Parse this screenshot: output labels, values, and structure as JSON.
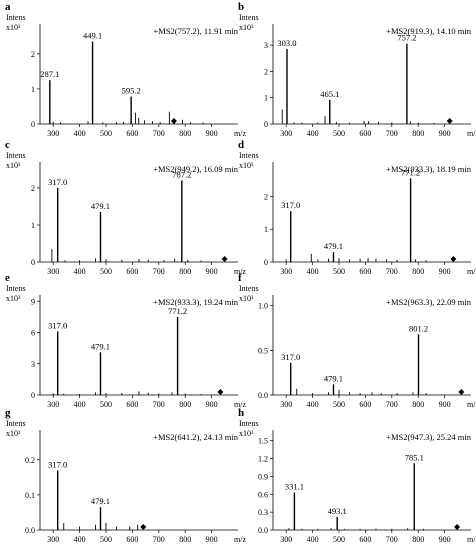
{
  "figure": {
    "y_axis_label": "Intens",
    "x_axis_unit": "m/z"
  },
  "chart_data": [
    {
      "panel": "a",
      "type": "bar",
      "title": "+MS2(757.2), 11.91 min",
      "y_multiplier": "x10³",
      "xlim": [
        250,
        1000
      ],
      "ylim": [
        0,
        2.85
      ],
      "xticks": [
        300,
        400,
        500,
        600,
        700,
        800,
        900
      ],
      "yticks": [
        0,
        1,
        2
      ],
      "peaks": [
        {
          "mz": 287.1,
          "intensity": 1.25,
          "label": "287.1"
        },
        {
          "mz": 449.1,
          "intensity": 2.35,
          "label": "449.1"
        },
        {
          "mz": 595.2,
          "intensity": 0.78,
          "label": "595.2"
        },
        {
          "mz": 300,
          "intensity": 0.06
        },
        {
          "mz": 328,
          "intensity": 0.05
        },
        {
          "mz": 432,
          "intensity": 0.08
        },
        {
          "mz": 488,
          "intensity": 0.05
        },
        {
          "mz": 540,
          "intensity": 0.05
        },
        {
          "mz": 566,
          "intensity": 0.06
        },
        {
          "mz": 612,
          "intensity": 0.32
        },
        {
          "mz": 624,
          "intensity": 0.18
        },
        {
          "mz": 646,
          "intensity": 0.1
        },
        {
          "mz": 676,
          "intensity": 0.08
        },
        {
          "mz": 705,
          "intensity": 0.06
        },
        {
          "mz": 740,
          "intensity": 0.35
        },
        {
          "mz": 760,
          "intensity": 0.1
        },
        {
          "mz": 790,
          "intensity": 0.12
        },
        {
          "mz": 820,
          "intensity": 0.05
        },
        {
          "mz": 868,
          "intensity": 0.04
        }
      ],
      "precursor_mz": 757.2
    },
    {
      "panel": "b",
      "type": "bar",
      "title": "+MS2(919.3), 14.10 min",
      "y_multiplier": "x10³",
      "xlim": [
        250,
        1000
      ],
      "ylim": [
        0,
        3.8
      ],
      "xticks": [
        300,
        400,
        500,
        600,
        700,
        800,
        900
      ],
      "yticks": [
        0,
        1,
        2,
        3
      ],
      "peaks": [
        {
          "mz": 303.0,
          "intensity": 2.85,
          "label": "303.0"
        },
        {
          "mz": 465.1,
          "intensity": 0.92,
          "label": "465.1"
        },
        {
          "mz": 757.2,
          "intensity": 3.05,
          "label": "757.2"
        },
        {
          "mz": 285,
          "intensity": 0.55
        },
        {
          "mz": 330,
          "intensity": 0.06
        },
        {
          "mz": 360,
          "intensity": 0.05
        },
        {
          "mz": 420,
          "intensity": 0.06
        },
        {
          "mz": 447,
          "intensity": 0.3
        },
        {
          "mz": 490,
          "intensity": 0.08
        },
        {
          "mz": 540,
          "intensity": 0.05
        },
        {
          "mz": 595,
          "intensity": 0.12
        },
        {
          "mz": 612,
          "intensity": 0.1
        },
        {
          "mz": 650,
          "intensity": 0.08
        },
        {
          "mz": 700,
          "intensity": 0.06
        },
        {
          "mz": 770,
          "intensity": 0.1
        },
        {
          "mz": 800,
          "intensity": 0.05
        },
        {
          "mz": 860,
          "intensity": 0.04
        }
      ],
      "precursor_mz": 919.3
    },
    {
      "panel": "c",
      "type": "bar",
      "title": "+MS2(949.2), 16.09 min",
      "y_multiplier": "x10³",
      "xlim": [
        250,
        1000
      ],
      "ylim": [
        0,
        2.7
      ],
      "xticks": [
        300,
        400,
        500,
        600,
        700,
        800,
        900
      ],
      "yticks": [
        0,
        1,
        2
      ],
      "peaks": [
        {
          "mz": 317.0,
          "intensity": 2.0,
          "label": "317.0"
        },
        {
          "mz": 479.1,
          "intensity": 1.35,
          "label": "479.1"
        },
        {
          "mz": 787.2,
          "intensity": 2.2,
          "label": "787.2"
        },
        {
          "mz": 295,
          "intensity": 0.35
        },
        {
          "mz": 345,
          "intensity": 0.05
        },
        {
          "mz": 400,
          "intensity": 0.05
        },
        {
          "mz": 460,
          "intensity": 0.1
        },
        {
          "mz": 500,
          "intensity": 0.08
        },
        {
          "mz": 560,
          "intensity": 0.06
        },
        {
          "mz": 625,
          "intensity": 0.08
        },
        {
          "mz": 660,
          "intensity": 0.06
        },
        {
          "mz": 720,
          "intensity": 0.05
        },
        {
          "mz": 760,
          "intensity": 0.08
        },
        {
          "mz": 810,
          "intensity": 0.06
        },
        {
          "mz": 860,
          "intensity": 0.04
        }
      ],
      "precursor_mz": 949.2
    },
    {
      "panel": "d",
      "type": "bar",
      "title": "+MS2(933.3), 18.19 min",
      "y_multiplier": "x10³",
      "xlim": [
        250,
        1000
      ],
      "ylim": [
        0,
        3.05
      ],
      "xticks": [
        300,
        400,
        500,
        600,
        700,
        800,
        900
      ],
      "yticks": [
        0,
        1,
        2
      ],
      "peaks": [
        {
          "mz": 317.0,
          "intensity": 1.55,
          "label": "317.0"
        },
        {
          "mz": 479.1,
          "intensity": 0.3,
          "label": "479.1"
        },
        {
          "mz": 771.2,
          "intensity": 2.55,
          "label": "771.2"
        },
        {
          "mz": 300,
          "intensity": 0.08
        },
        {
          "mz": 395,
          "intensity": 0.25
        },
        {
          "mz": 420,
          "intensity": 0.08
        },
        {
          "mz": 460,
          "intensity": 0.1
        },
        {
          "mz": 500,
          "intensity": 0.12
        },
        {
          "mz": 540,
          "intensity": 0.08
        },
        {
          "mz": 580,
          "intensity": 0.1
        },
        {
          "mz": 610,
          "intensity": 0.12
        },
        {
          "mz": 640,
          "intensity": 0.1
        },
        {
          "mz": 680,
          "intensity": 0.08
        },
        {
          "mz": 720,
          "intensity": 0.06
        },
        {
          "mz": 790,
          "intensity": 0.08
        },
        {
          "mz": 830,
          "intensity": 0.05
        }
      ],
      "precursor_mz": 933.3
    },
    {
      "panel": "e",
      "type": "bar",
      "title": "+MS2(933.3), 19.24 min",
      "y_multiplier": "x10³",
      "xlim": [
        250,
        1000
      ],
      "ylim": [
        0,
        9.6
      ],
      "xticks": [
        300,
        400,
        500,
        600,
        700,
        800,
        900
      ],
      "yticks": [
        0,
        3,
        6,
        9
      ],
      "peaks": [
        {
          "mz": 317.0,
          "intensity": 6.1,
          "label": "317.0"
        },
        {
          "mz": 479.1,
          "intensity": 4.1,
          "label": "479.1"
        },
        {
          "mz": 771.2,
          "intensity": 7.5,
          "label": "771.2"
        },
        {
          "mz": 300,
          "intensity": 0.15
        },
        {
          "mz": 340,
          "intensity": 0.12
        },
        {
          "mz": 400,
          "intensity": 0.1
        },
        {
          "mz": 460,
          "intensity": 0.25
        },
        {
          "mz": 500,
          "intensity": 0.2
        },
        {
          "mz": 560,
          "intensity": 0.18
        },
        {
          "mz": 625,
          "intensity": 0.35
        },
        {
          "mz": 660,
          "intensity": 0.2
        },
        {
          "mz": 700,
          "intensity": 0.15
        },
        {
          "mz": 750,
          "intensity": 0.25
        },
        {
          "mz": 800,
          "intensity": 0.15
        },
        {
          "mz": 860,
          "intensity": 0.1
        }
      ],
      "precursor_mz": 933.3
    },
    {
      "panel": "f",
      "type": "bar",
      "title": "+MS2(963.3), 22.09 min",
      "y_multiplier": "x10³",
      "xlim": [
        250,
        1000
      ],
      "ylim": [
        0,
        1.12
      ],
      "xticks": [
        300,
        400,
        500,
        600,
        700,
        800,
        900
      ],
      "yticks": [
        0.0,
        0.5,
        1.0
      ],
      "peaks": [
        {
          "mz": 317.0,
          "intensity": 0.36,
          "label": "317.0"
        },
        {
          "mz": 479.1,
          "intensity": 0.12,
          "label": "479.1"
        },
        {
          "mz": 801.2,
          "intensity": 0.68,
          "label": "801.2"
        },
        {
          "mz": 340,
          "intensity": 0.07
        },
        {
          "mz": 400,
          "intensity": 0.02
        },
        {
          "mz": 460,
          "intensity": 0.03
        },
        {
          "mz": 500,
          "intensity": 0.06
        },
        {
          "mz": 540,
          "intensity": 0.03
        },
        {
          "mz": 580,
          "intensity": 0.02
        },
        {
          "mz": 625,
          "intensity": 0.03
        },
        {
          "mz": 660,
          "intensity": 0.02
        },
        {
          "mz": 720,
          "intensity": 0.02
        },
        {
          "mz": 780,
          "intensity": 0.03
        },
        {
          "mz": 830,
          "intensity": 0.02
        }
      ],
      "precursor_mz": 963.3
    },
    {
      "panel": "g",
      "type": "bar",
      "title": "+MS2(641.2), 24.13 min",
      "y_multiplier": "x10³",
      "xlim": [
        250,
        1000
      ],
      "ylim": [
        0,
        0.285
      ],
      "xticks": [
        300,
        400,
        500,
        600,
        700,
        800,
        900
      ],
      "yticks": [
        0.0,
        0.1,
        0.2
      ],
      "peaks": [
        {
          "mz": 317.0,
          "intensity": 0.17,
          "label": "317.0"
        },
        {
          "mz": 479.1,
          "intensity": 0.065,
          "label": "479.1"
        },
        {
          "mz": 340,
          "intensity": 0.02
        },
        {
          "mz": 400,
          "intensity": 0.01
        },
        {
          "mz": 460,
          "intensity": 0.015
        },
        {
          "mz": 500,
          "intensity": 0.02
        },
        {
          "mz": 540,
          "intensity": 0.01
        },
        {
          "mz": 590,
          "intensity": 0.01
        },
        {
          "mz": 620,
          "intensity": 0.015
        }
      ],
      "precursor_mz": 641.2
    },
    {
      "panel": "h",
      "type": "bar",
      "title": "+MS2(947.3), 25.24 min",
      "y_multiplier": "x10³",
      "xlim": [
        250,
        1000
      ],
      "ylim": [
        0,
        1.68
      ],
      "xticks": [
        300,
        400,
        500,
        600,
        700,
        800,
        900
      ],
      "yticks": [
        0.0,
        0.3,
        0.6,
        0.9,
        1.2,
        1.5
      ],
      "peaks": [
        {
          "mz": 331.1,
          "intensity": 0.63,
          "label": "331.1"
        },
        {
          "mz": 493.1,
          "intensity": 0.22,
          "label": "493.1"
        },
        {
          "mz": 785.1,
          "intensity": 1.12,
          "label": "785.1"
        },
        {
          "mz": 310,
          "intensity": 0.03
        },
        {
          "mz": 360,
          "intensity": 0.02
        },
        {
          "mz": 420,
          "intensity": 0.02
        },
        {
          "mz": 470,
          "intensity": 0.03
        },
        {
          "mz": 520,
          "intensity": 0.02
        },
        {
          "mz": 580,
          "intensity": 0.02
        },
        {
          "mz": 640,
          "intensity": 0.02
        },
        {
          "mz": 700,
          "intensity": 0.02
        },
        {
          "mz": 760,
          "intensity": 0.03
        },
        {
          "mz": 820,
          "intensity": 0.02
        }
      ],
      "precursor_mz": 947.3
    }
  ]
}
